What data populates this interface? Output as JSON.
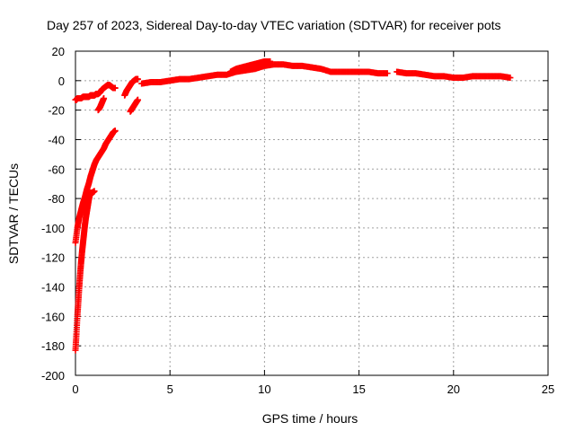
{
  "chart_data": {
    "type": "scatter",
    "title": "Day 257 of 2023, Sidereal Day-to-day VTEC variation (SDTVAR) for receiver pots",
    "xlabel": "GPS time / hours",
    "ylabel": "SDTVAR / TECUs",
    "xlim": [
      0,
      25
    ],
    "ylim": [
      -200,
      20
    ],
    "xticks": [
      0,
      5,
      10,
      15,
      20,
      25
    ],
    "yticks": [
      -200,
      -180,
      -160,
      -140,
      -120,
      -100,
      -80,
      -60,
      -40,
      -20,
      0,
      20
    ],
    "grid": true,
    "marker": "+",
    "series": [
      {
        "color": "#ff0000",
        "segments": [
          {
            "x": [
              0.0,
              0.05,
              0.1,
              0.15,
              0.2,
              0.3,
              0.4,
              0.5,
              0.6,
              0.7,
              0.8,
              0.9,
              1.0,
              1.1,
              1.2,
              1.3,
              1.4,
              1.5,
              1.6,
              1.7,
              1.8,
              1.9,
              2.0,
              2.1
            ],
            "y": [
              -13,
              -13,
              -12,
              -12,
              -12,
              -12,
              -11,
              -11,
              -11,
              -11,
              -10,
              -10,
              -10,
              -9,
              -9,
              -8,
              -6,
              -5,
              -4,
              -3,
              -3,
              -4,
              -5,
              -5
            ]
          },
          {
            "x": [
              0.0,
              0.05,
              0.1,
              0.15,
              0.2,
              0.25,
              0.3,
              0.35,
              0.4,
              0.45,
              0.5,
              0.55,
              0.6,
              0.65,
              0.7,
              0.75,
              0.8,
              0.9,
              1.0
            ],
            "y": [
              -183,
              -172,
              -160,
              -150,
              -140,
              -131,
              -123,
              -116,
              -110,
              -104,
              -98,
              -93,
              -89,
              -85,
              -81,
              -78,
              -76,
              -76,
              -75
            ]
          },
          {
            "x": [
              0.0,
              0.1,
              0.2,
              0.3,
              0.4,
              0.5,
              0.6,
              0.7,
              0.8,
              0.9,
              1.0,
              1.1,
              1.2,
              1.3,
              1.4,
              1.5,
              1.6,
              1.7,
              1.8,
              1.9,
              2.0,
              2.1
            ],
            "y": [
              -110,
              -100,
              -93,
              -88,
              -83,
              -79,
              -74,
              -70,
              -65,
              -61,
              -57,
              -54,
              -52,
              -50,
              -48,
              -46,
              -43,
              -41,
              -39,
              -37,
              -35,
              -34
            ]
          },
          {
            "x": [
              1.2,
              1.3,
              1.4,
              1.5
            ],
            "y": [
              -20,
              -18,
              -15,
              -12
            ]
          },
          {
            "x": [
              2.6,
              2.7,
              2.8,
              2.9,
              3.0,
              3.1,
              3.2,
              3.3
            ],
            "y": [
              -10,
              -7,
              -5,
              -3,
              -1,
              0,
              1,
              1
            ]
          },
          {
            "x": [
              2.9,
              3.0,
              3.1,
              3.2,
              3.3
            ],
            "y": [
              -21,
              -19,
              -17,
              -15,
              -13
            ]
          },
          {
            "x": [
              3.5,
              4.0,
              4.5,
              5.0,
              5.5,
              6.0,
              6.5,
              7.0,
              7.5,
              8.0,
              8.5,
              9.0,
              9.5,
              10.0,
              10.5,
              11.0,
              11.5,
              12.0,
              12.5,
              13.0,
              13.5,
              14.0,
              14.5,
              15.0,
              15.5,
              16.0,
              16.5
            ],
            "y": [
              -2,
              -1,
              -1,
              0,
              1,
              1,
              2,
              3,
              4,
              4,
              6,
              7,
              8,
              10,
              11,
              11,
              10,
              10,
              9,
              8,
              6,
              6,
              6,
              6,
              6,
              5,
              5
            ]
          },
          {
            "x": [
              8.2,
              8.5,
              8.8,
              9.1,
              9.4,
              9.7,
              10.0,
              10.3
            ],
            "y": [
              6,
              8,
              9,
              10,
              11,
              12,
              13,
              13
            ]
          },
          {
            "x": [
              17.0,
              17.5,
              18.0,
              18.5,
              19.0,
              19.5,
              20.0,
              20.5,
              21.0,
              21.5,
              22.0,
              22.5,
              23.0
            ],
            "y": [
              6,
              5,
              5,
              4,
              3,
              3,
              2,
              2,
              3,
              3,
              3,
              3,
              2
            ]
          }
        ]
      }
    ]
  }
}
